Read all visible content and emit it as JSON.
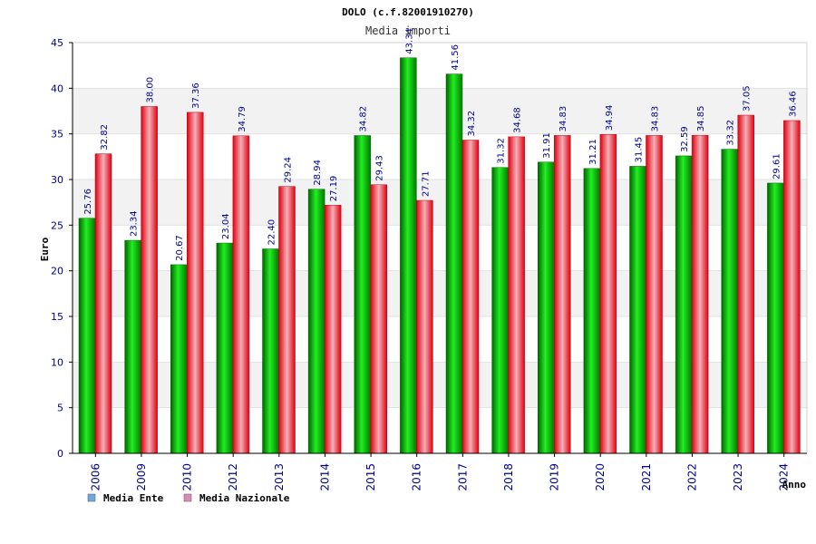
{
  "chart_data": {
    "type": "bar",
    "title": "DOLO (c.f.82001910270)",
    "subtitle": "Media importi",
    "xlabel": "Anno",
    "ylabel": "Euro",
    "ylim": [
      0,
      45
    ],
    "yticks": [
      "0",
      "5",
      "10",
      "15",
      "20",
      "25",
      "30",
      "35",
      "40",
      "45"
    ],
    "grid": true,
    "legend_position": "bottom-left",
    "categories": [
      "2006",
      "2009",
      "2010",
      "2012",
      "2013",
      "2014",
      "2015",
      "2016",
      "2017",
      "2018",
      "2019",
      "2020",
      "2021",
      "2022",
      "2023",
      "2024"
    ],
    "series": [
      {
        "name": "Media Ente",
        "color": "#00b000",
        "legend_color": "#6fa8dc",
        "values": [
          25.76,
          23.34,
          20.67,
          23.04,
          22.4,
          28.94,
          34.82,
          43.34,
          41.56,
          31.32,
          31.91,
          31.21,
          31.45,
          32.59,
          33.32,
          29.61
        ],
        "labels": [
          "25.76",
          "23.34",
          "20.67",
          "23.04",
          "22.40",
          "28.94",
          "34.82",
          "43.34",
          "41.56",
          "31.32",
          "31.91",
          "31.21",
          "31.45",
          "32.59",
          "33.32",
          "29.61"
        ]
      },
      {
        "name": "Media Nazionale",
        "color": "#e8323c",
        "legend_color": "#d98cb3",
        "values": [
          32.82,
          38.0,
          37.36,
          34.79,
          29.24,
          27.19,
          29.43,
          27.71,
          34.32,
          34.68,
          34.83,
          34.94,
          34.83,
          34.85,
          37.05,
          36.46
        ],
        "labels": [
          "32.82",
          "38.00",
          "37.36",
          "34.79",
          "29.24",
          "27.19",
          "29.43",
          "27.71",
          "34.32",
          "34.68",
          "34.83",
          "34.94",
          "34.83",
          "34.85",
          "37.05",
          "36.46"
        ]
      }
    ]
  }
}
